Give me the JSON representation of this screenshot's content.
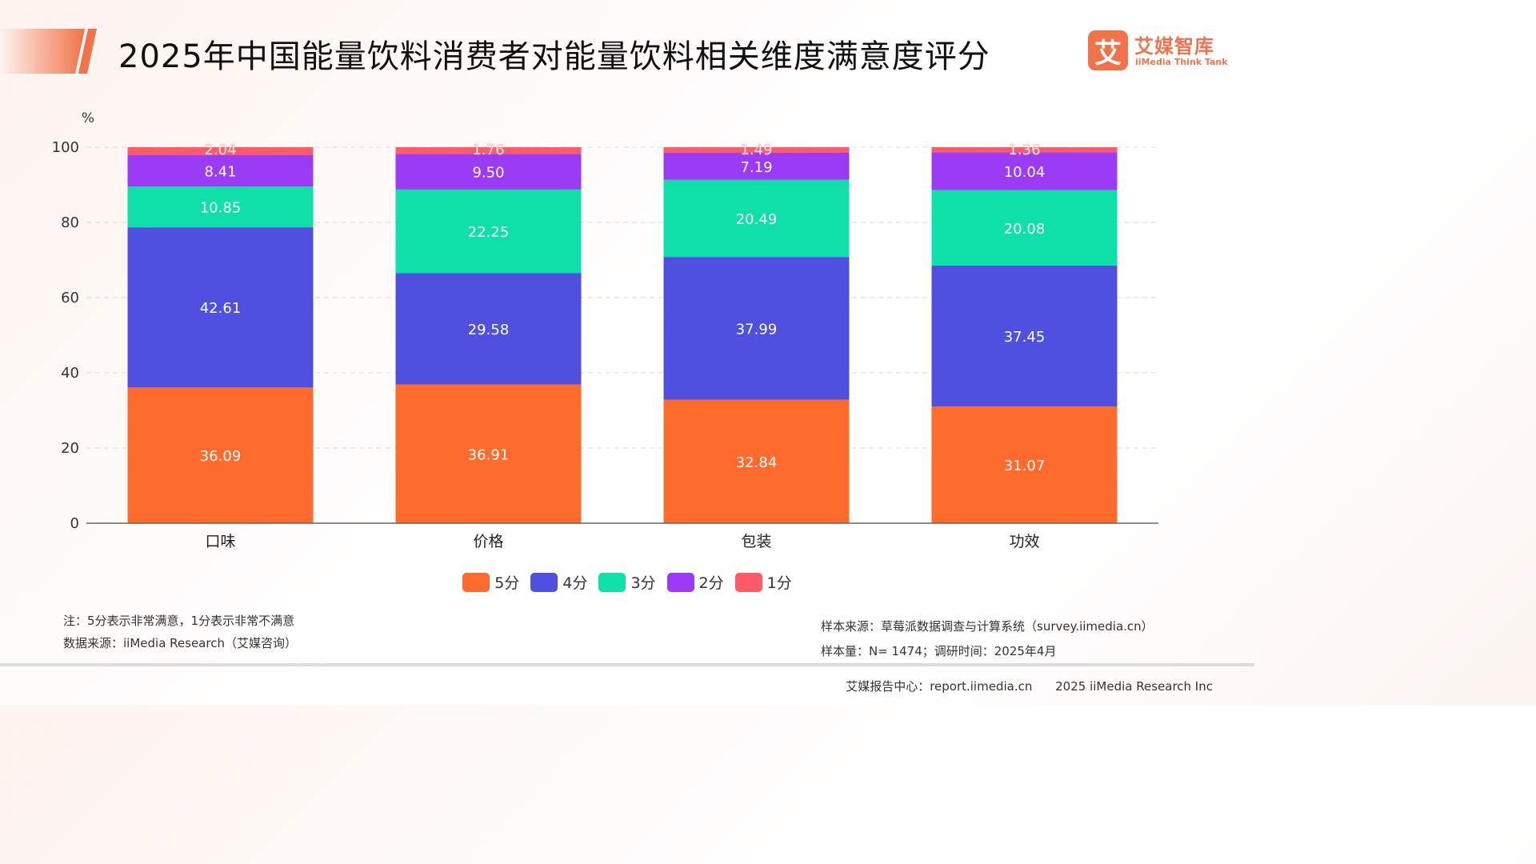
{
  "header": {
    "title": "2025年中国能量饮料消费者对能量饮料相关维度满意度评分",
    "logo_mark": "艾",
    "logo_cn": "艾媒智库",
    "logo_en": "iiMedia Think Tank",
    "accent_color": "#f0734a"
  },
  "chart_data": {
    "type": "bar",
    "stacked": true,
    "title": "2025年中国能量饮料消费者对能量饮料相关维度满意度评分",
    "ylabel": "%",
    "xlabel": "",
    "ylim": [
      0,
      100
    ],
    "yticks": [
      0,
      20,
      40,
      60,
      80,
      100
    ],
    "grid": true,
    "legend_position": "bottom",
    "categories": [
      "口味",
      "价格",
      "包装",
      "功效"
    ],
    "series": [
      {
        "name": "5分",
        "color": "#ff6b2c",
        "values": [
          36.09,
          36.91,
          32.84,
          31.07
        ]
      },
      {
        "name": "4分",
        "color": "#5050e0",
        "values": [
          42.61,
          29.58,
          37.99,
          37.45
        ]
      },
      {
        "name": "3分",
        "color": "#0fe0aa",
        "values": [
          10.85,
          22.25,
          20.49,
          20.08
        ]
      },
      {
        "name": "2分",
        "color": "#9b3bf5",
        "values": [
          8.41,
          9.5,
          7.19,
          10.04
        ]
      },
      {
        "name": "1分",
        "color": "#ff5a68",
        "values": [
          2.04,
          1.76,
          1.49,
          1.36
        ]
      }
    ]
  },
  "notes": {
    "note": "注：5分表示非常满意，1分表示非常不满意",
    "data_source": "数据来源：iiMedia Research（艾媒咨询）",
    "sample_source": "样本来源：草莓派数据调查与计算系统（survey.iimedia.cn）",
    "sample_size": "样本量：N= 1474；调研时间：2025年4月"
  },
  "footer": {
    "report_center": "艾媒报告中心：report.iimedia.cn",
    "copyright": "2025 iiMedia Research Inc"
  }
}
